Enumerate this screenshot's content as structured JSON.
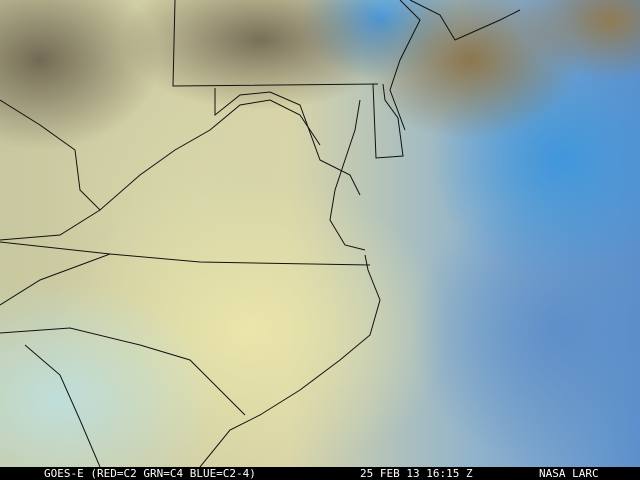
{
  "image": {
    "type": "satellite-multispectral-composite",
    "region": "Mid-Atlantic US",
    "colors": {
      "land_clear": "#6e6450",
      "cloud_low": "#e8e4aa",
      "water_clear": "#3c96dc",
      "caption_bg": "#000000",
      "caption_text": "#ffffff"
    }
  },
  "caption": {
    "satellite": "GOES-E (RED=C2 GRN=C4 BLUE=C2-4)",
    "datetime": "25 FEB 13 16:15 Z",
    "credit": "NASA LARC"
  }
}
